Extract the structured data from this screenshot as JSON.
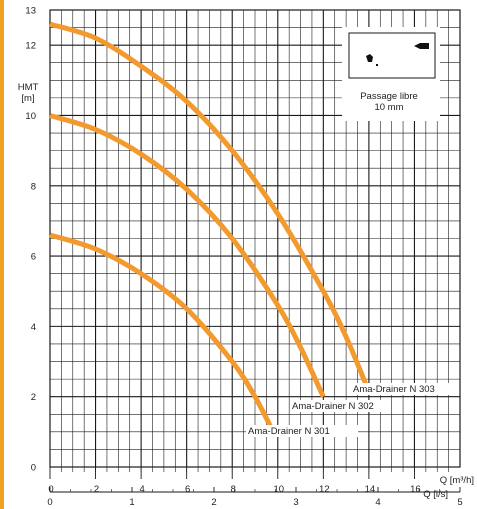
{
  "chart_data": {
    "type": "line",
    "ylabel": [
      "HMT",
      "[m]"
    ],
    "xlabel_q_m3h": "Q [m³/h]",
    "xlabel_q_ls": "Q [l/s]",
    "x_m3h": {
      "range": [
        0,
        18
      ],
      "ticks": [
        "0",
        "2",
        "4",
        "6",
        "8",
        "10",
        "12",
        "14",
        "16"
      ]
    },
    "x_ls": {
      "range": [
        0,
        5
      ],
      "ticks": [
        "0",
        "1",
        "2",
        "3",
        "4",
        "5"
      ]
    },
    "y": {
      "range": [
        0,
        13
      ],
      "ticks": [
        "0",
        "2",
        "4",
        "6",
        "8",
        "10",
        "12",
        "13"
      ]
    },
    "grid": true,
    "curve_color": "#f39a2e",
    "accent_bar_color": "#f3a01e",
    "series": [
      {
        "name": "Ama-Drainer   N 301",
        "points": [
          [
            0,
            6.6
          ],
          [
            2,
            6.2
          ],
          [
            4,
            5.5
          ],
          [
            6,
            4.5
          ],
          [
            8,
            3.0
          ],
          [
            9,
            2.0
          ],
          [
            9.8,
            1.0
          ]
        ]
      },
      {
        "name": "Ama-Drainer   N 302",
        "points": [
          [
            0,
            10.0
          ],
          [
            2,
            9.6
          ],
          [
            4,
            8.9
          ],
          [
            6,
            7.9
          ],
          [
            8,
            6.5
          ],
          [
            10,
            4.6
          ],
          [
            11,
            3.4
          ],
          [
            12,
            2.0
          ]
        ]
      },
      {
        "name": "Ama-Drainer   N 303",
        "points": [
          [
            0,
            12.6
          ],
          [
            2,
            12.2
          ],
          [
            4,
            11.4
          ],
          [
            6,
            10.4
          ],
          [
            8,
            9.0
          ],
          [
            10,
            7.2
          ],
          [
            12,
            5.0
          ],
          [
            13,
            3.7
          ],
          [
            13.9,
            2.3
          ]
        ]
      }
    ],
    "inset": {
      "line1": "Passage libre",
      "line2": "10 mm"
    }
  }
}
